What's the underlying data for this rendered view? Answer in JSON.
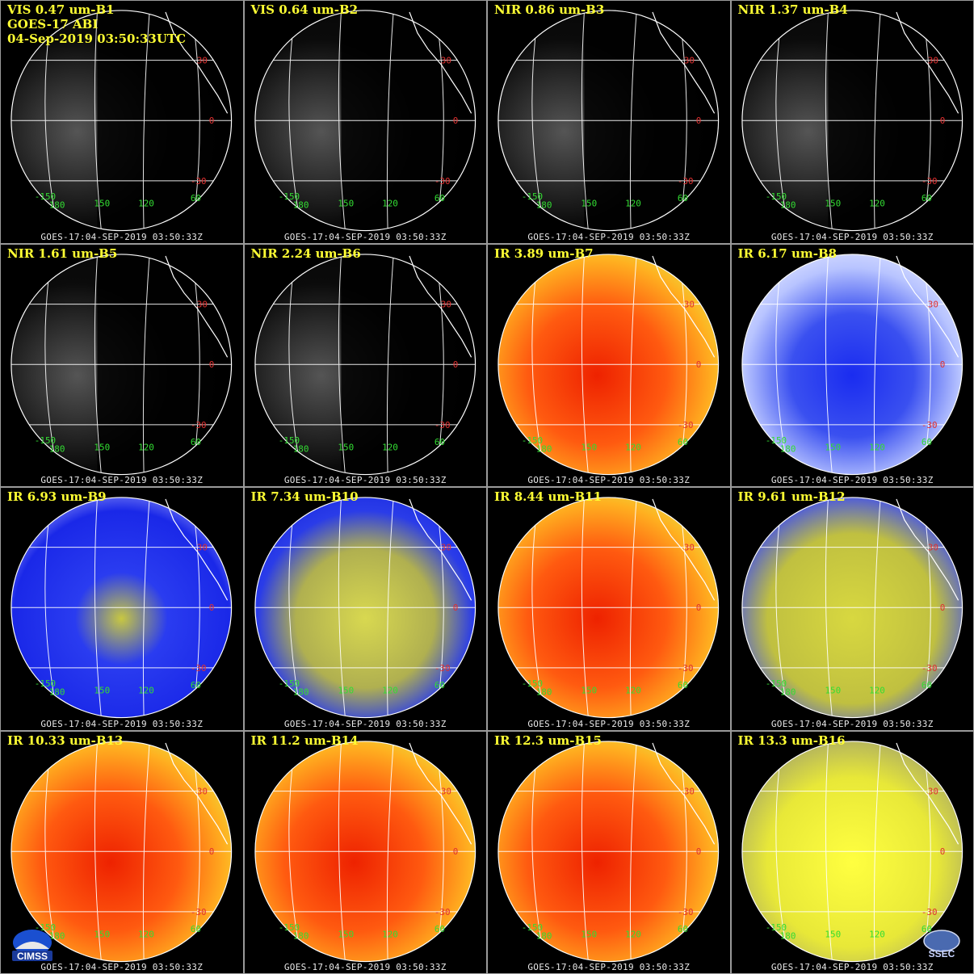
{
  "header": {
    "line2": "GOES-17 ABI",
    "line3": "04-Sep-2019 03:50:33UTC"
  },
  "footer_text": "GOES-17:04-SEP-2019 03:50:33Z",
  "lat_labels": [
    "30",
    "0",
    "-30"
  ],
  "lon_labels": [
    "-150",
    "180",
    "150",
    "120",
    "60"
  ],
  "colors": {
    "title": "#ffff33",
    "lat_label": "#e03030",
    "lon_label": "#33dd33",
    "panel_border": "#9a9a9a"
  },
  "panels": [
    {
      "title": "VIS 0.47 um-B1",
      "style": "vis"
    },
    {
      "title": "VIS 0.64 um-B2",
      "style": "vis"
    },
    {
      "title": "NIR 0.86 um-B3",
      "style": "vis"
    },
    {
      "title": "NIR 1.37 um-B4",
      "style": "vis"
    },
    {
      "title": "NIR 1.61 um-B5",
      "style": "vis"
    },
    {
      "title": "NIR 2.24 um-B6",
      "style": "vis"
    },
    {
      "title": "IR 3.89 um-B7",
      "style": "warm"
    },
    {
      "title": "IR 6.17 um-B8",
      "style": "wv-light"
    },
    {
      "title": "IR 6.93 um-B9",
      "style": "wv"
    },
    {
      "title": "IR 7.34 um-B10",
      "style": "wv-yellow"
    },
    {
      "title": "IR 8.44 um-B11",
      "style": "warm"
    },
    {
      "title": "IR 9.61 um-B12",
      "style": "ozone"
    },
    {
      "title": "IR 10.33 um-B13",
      "style": "warm"
    },
    {
      "title": "IR 11.2 um-B14",
      "style": "warm"
    },
    {
      "title": "IR 12.3 um-B15",
      "style": "warm"
    },
    {
      "title": "IR 13.3 um-B16",
      "style": "co2"
    }
  ],
  "logos": {
    "left": "CIMSS",
    "right": "SSEC"
  }
}
